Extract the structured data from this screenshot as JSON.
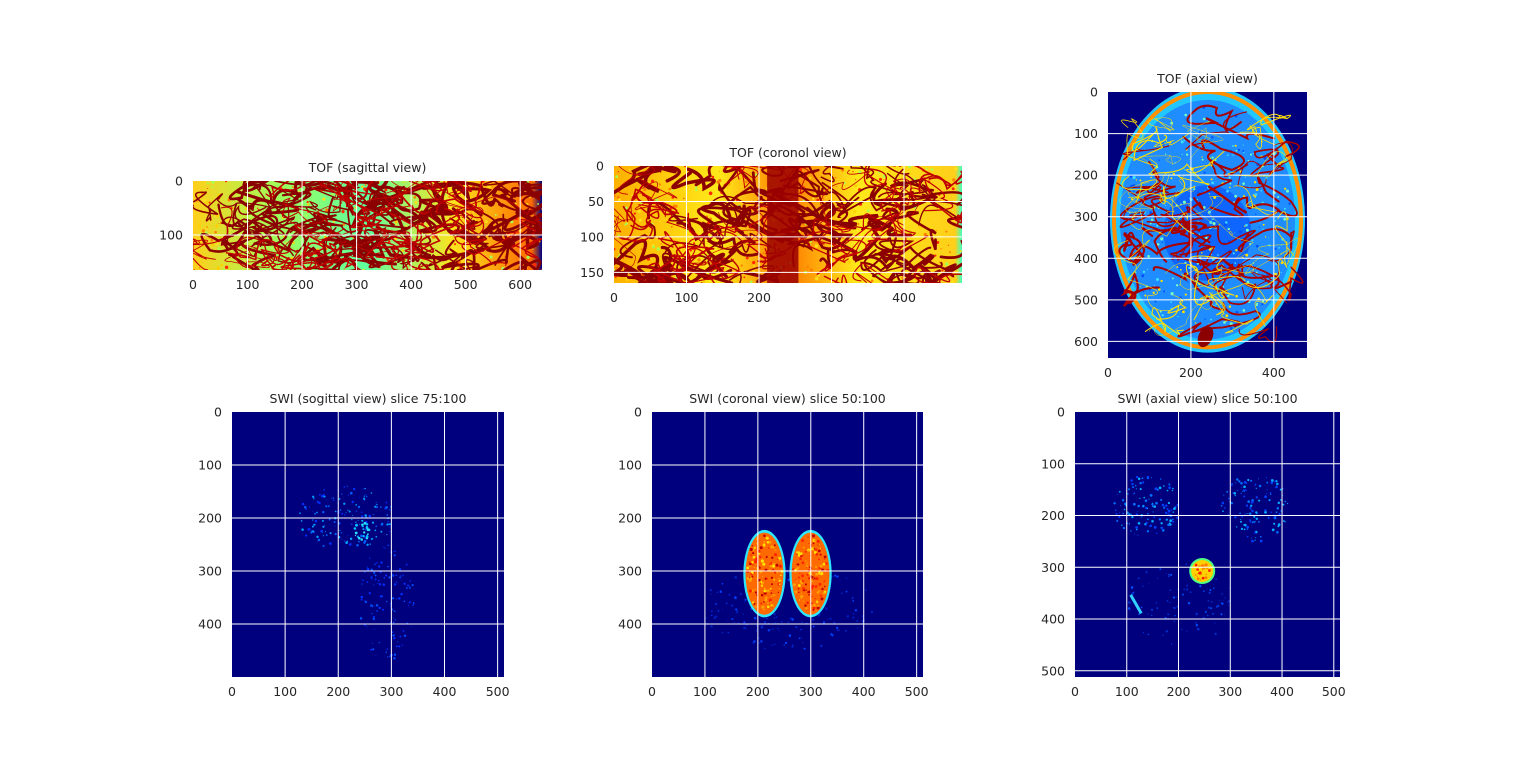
{
  "chart_data": [
    {
      "type": "heatmap",
      "title": "TOF (sagittal view)",
      "colormap": "jet",
      "image_shape": [
        165,
        640
      ],
      "xticks": [
        0,
        100,
        200,
        300,
        400,
        500,
        600
      ],
      "yticks": [
        0,
        100
      ],
      "xlim": [
        0,
        640
      ],
      "ylim": [
        165,
        0
      ],
      "grid": true,
      "content": "vessel",
      "background_color": "#9eff5a"
    },
    {
      "type": "heatmap",
      "title": "TOF (coronol view)",
      "colormap": "jet",
      "image_shape": [
        165,
        480
      ],
      "xticks": [
        0,
        100,
        200,
        300,
        400
      ],
      "yticks": [
        0,
        50,
        100,
        150
      ],
      "xlim": [
        0,
        480
      ],
      "ylim": [
        165,
        0
      ],
      "grid": true,
      "content": "vessel",
      "background_color": "#ffd21e"
    },
    {
      "type": "heatmap",
      "title": "TOF (axial view)",
      "colormap": "jet",
      "image_shape": [
        640,
        480
      ],
      "xticks": [
        0,
        200,
        400
      ],
      "yticks": [
        0,
        100,
        200,
        300,
        400,
        500,
        600
      ],
      "xlim": [
        0,
        480
      ],
      "ylim": [
        640,
        0
      ],
      "grid": true,
      "content": "axial-head",
      "background_color": "#00007f"
    },
    {
      "type": "heatmap",
      "title": "SWI (sogittal view) slice 75:100",
      "colormap": "jet",
      "image_shape": [
        500,
        512
      ],
      "xticks": [
        0,
        100,
        200,
        300,
        400,
        500
      ],
      "yticks": [
        0,
        100,
        200,
        300,
        400
      ],
      "xlim": [
        0,
        512
      ],
      "ylim": [
        500,
        0
      ],
      "grid": true,
      "content": "sparse-sagittal",
      "background_color": "#00007f"
    },
    {
      "type": "heatmap",
      "title": "SWI (coronal view) slice 50:100",
      "colormap": "jet",
      "image_shape": [
        500,
        512
      ],
      "xticks": [
        0,
        100,
        200,
        300,
        400,
        500
      ],
      "yticks": [
        0,
        100,
        200,
        300,
        400
      ],
      "xlim": [
        0,
        512
      ],
      "ylim": [
        500,
        0
      ],
      "grid": true,
      "content": "coronal-lobes",
      "background_color": "#00007f"
    },
    {
      "type": "heatmap",
      "title": "SWI (axial view) slice 50:100",
      "colormap": "jet",
      "image_shape": [
        512,
        512
      ],
      "xticks": [
        0,
        100,
        200,
        300,
        400,
        500
      ],
      "yticks": [
        0,
        100,
        200,
        300,
        400,
        500
      ],
      "xlim": [
        0,
        512
      ],
      "ylim": [
        512,
        0
      ],
      "grid": true,
      "content": "axial-blob",
      "background_color": "#00007f"
    }
  ]
}
